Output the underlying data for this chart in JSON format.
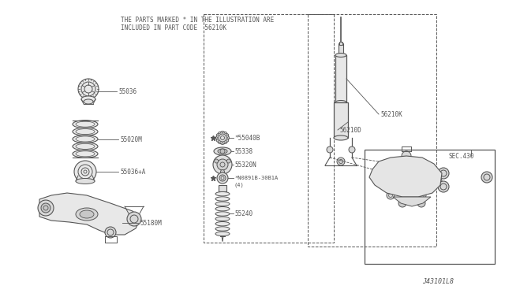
{
  "bg_color": "#ffffff",
  "line_color": "#555555",
  "header_line1": "THE PARTS MARKED * IN THE ILLUSTRATION ARE",
  "header_line2": "INCLUDED IN PART CODE  56210K",
  "footer": "J43101L8",
  "lw": 0.8
}
